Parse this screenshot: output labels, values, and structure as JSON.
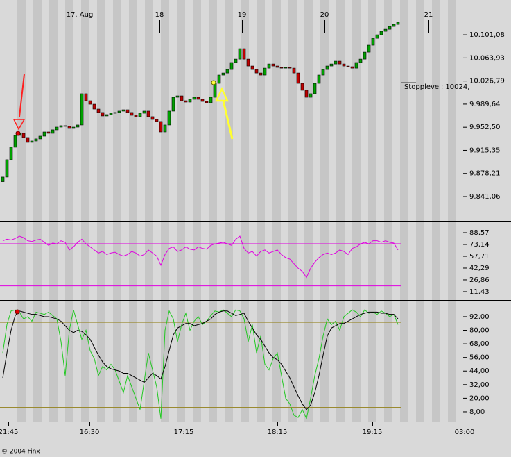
{
  "chart_data": [
    {
      "type": "candlestick",
      "date_labels": [
        "17. Aug",
        "18",
        "19",
        "20",
        "21"
      ],
      "open": [
        9865.0,
        9872.4,
        9900.3,
        9920.4,
        9939.4,
        9942.7,
        9936.0,
        9928.2,
        9930.4,
        9933.8,
        9938.2,
        9944.9,
        9942.7,
        9948.3,
        9952.7,
        9955.0,
        9953.9,
        9950.5,
        9952.7,
        9956.1,
        10006.3,
        9995.1,
        9989.5,
        9981.7,
        9976.2,
        9970.6,
        9972.8,
        9975.0,
        9976.2,
        9978.4,
        9980.6,
        9976.2,
        9971.7,
        9969.5,
        9975.0,
        9978.4,
        9969.5,
        9965.0,
        9961.7,
        9944.9,
        9956.1,
        9978.4,
        10000.7,
        10002.9,
        9995.1,
        9992.9,
        9997.4,
        10000.7,
        9997.4,
        9994.0,
        9991.8,
        10000.7,
        10023.0,
        10036.4,
        10039.7,
        10045.3,
        10056.5,
        10062.0,
        10078.8,
        10062.0,
        10050.9,
        10045.3,
        10039.7,
        10036.4,
        10047.5,
        10054.2,
        10050.9,
        10048.7,
        10047.5,
        10048.7,
        10047.5,
        10039.7,
        10023.0,
        10011.9,
        10000.7,
        10006.3,
        10023.0,
        10036.4,
        10045.3,
        10050.9,
        10054.2,
        10058.7,
        10054.2,
        10050.9,
        10049.8,
        10047.5,
        10056.5,
        10062.0,
        10073.2,
        10084.4,
        10095.5,
        10101.1,
        10106.7,
        10110.0,
        10114.5,
        10117.8
      ],
      "close": [
        9872.4,
        9900.3,
        9920.4,
        9939.4,
        9942.7,
        9936.0,
        9928.2,
        9930.4,
        9933.8,
        9938.2,
        9944.9,
        9942.7,
        9948.3,
        9952.7,
        9955.0,
        9953.9,
        9950.5,
        9952.7,
        9956.1,
        10006.3,
        9995.1,
        9989.5,
        9981.7,
        9976.2,
        9970.6,
        9972.8,
        9975.0,
        9976.2,
        9978.4,
        9980.6,
        9976.2,
        9971.7,
        9969.5,
        9975.0,
        9978.4,
        9969.5,
        9965.0,
        9961.7,
        9944.9,
        9956.1,
        9978.4,
        10000.7,
        10002.9,
        9995.1,
        9992.9,
        9997.4,
        10000.7,
        9997.4,
        9994.0,
        9991.8,
        10000.7,
        10023.0,
        10036.4,
        10039.7,
        10045.3,
        10056.5,
        10062.0,
        10078.8,
        10062.0,
        10050.9,
        10045.3,
        10039.7,
        10036.4,
        10047.5,
        10054.2,
        10050.9,
        10048.7,
        10047.5,
        10048.7,
        10047.5,
        10039.7,
        10023.0,
        10011.9,
        10000.7,
        10006.3,
        10023.0,
        10036.4,
        10045.3,
        10050.9,
        10054.2,
        10058.7,
        10054.2,
        10050.9,
        10049.8,
        10047.5,
        10056.5,
        10062.0,
        10073.2,
        10084.4,
        10095.5,
        10101.1,
        10106.7,
        10110.0,
        10114.5,
        10117.8,
        10121.2
      ],
      "up_color": "#00a000",
      "down_color": "#c00000",
      "ylim": [
        9802,
        10157
      ],
      "yticks": [
        {
          "value": 9841.06,
          "label": "9.841,06"
        },
        {
          "value": 9878.21,
          "label": "9.878,21"
        },
        {
          "value": 9915.35,
          "label": "9.915,35"
        },
        {
          "value": 9952.5,
          "label": "9.952,50"
        },
        {
          "value": 9989.64,
          "label": "9.989,64"
        },
        {
          "value": 10026.79,
          "label": "10.026,79"
        },
        {
          "value": 10063.93,
          "label": "10.063,93"
        },
        {
          "value": 10101.08,
          "label": "10.101,08"
        }
      ],
      "annotation": {
        "label": "Stopplevel: 10024,",
        "value": 10024
      }
    },
    {
      "type": "line",
      "series": [
        {
          "color": "#e000e0",
          "values": [
            78,
            80,
            79,
            81,
            84,
            82,
            78,
            77,
            79,
            80,
            76,
            72,
            75,
            74,
            78,
            76,
            66,
            70,
            76,
            80,
            74,
            70,
            66,
            62,
            64,
            60,
            62,
            63,
            60,
            58,
            60,
            64,
            62,
            58,
            60,
            66,
            62,
            58,
            46,
            60,
            68,
            70,
            64,
            66,
            70,
            67,
            66,
            70,
            68,
            67,
            72,
            74,
            75,
            76,
            74,
            72,
            80,
            84,
            68,
            62,
            64,
            58,
            64,
            66,
            62,
            64,
            66,
            60,
            56,
            54,
            48,
            42,
            38,
            30,
            42,
            50,
            56,
            60,
            62,
            60,
            62,
            66,
            64,
            60,
            68,
            70,
            74,
            76,
            74,
            78,
            78,
            76,
            78,
            76,
            75,
            66
          ]
        }
      ],
      "levels": [
        74,
        19
      ],
      "level_color": "#e000e0",
      "ylim": [
        0.5,
        102.2
      ],
      "yticks": [
        {
          "value": 11.43,
          "label": "11,43"
        },
        {
          "value": 26.86,
          "label": "26,86"
        },
        {
          "value": 42.29,
          "label": "42,29"
        },
        {
          "value": 57.71,
          "label": "57,71"
        },
        {
          "value": 73.14,
          "label": "73,14"
        },
        {
          "value": 88.57,
          "label": "88,57"
        }
      ]
    },
    {
      "type": "line",
      "series": [
        {
          "color": "#22c822",
          "values": [
            60,
            85,
            97,
            98,
            96,
            90,
            92,
            88,
            96,
            95,
            94,
            96,
            93,
            90,
            70,
            40,
            80,
            98,
            85,
            72,
            80,
            62,
            55,
            40,
            48,
            45,
            50,
            45,
            35,
            25,
            40,
            30,
            20,
            10,
            35,
            60,
            45,
            30,
            2,
            80,
            97,
            90,
            70,
            85,
            95,
            80,
            88,
            92,
            85,
            88,
            93,
            97,
            96,
            98,
            95,
            92,
            98,
            97,
            90,
            70,
            85,
            60,
            75,
            50,
            45,
            55,
            60,
            40,
            20,
            15,
            5,
            3,
            10,
            2,
            20,
            40,
            55,
            75,
            90,
            85,
            88,
            80,
            92,
            95,
            98,
            96,
            92,
            98,
            95,
            96,
            94,
            97,
            95,
            92,
            94,
            85
          ]
        },
        {
          "color": "#000000",
          "values": [
            38,
            60,
            80,
            93,
            97,
            96,
            95,
            94,
            94,
            93,
            92,
            92,
            91,
            90,
            88,
            84,
            80,
            78,
            80,
            79,
            76,
            72,
            65,
            58,
            52,
            48,
            46,
            45,
            44,
            42,
            42,
            40,
            38,
            36,
            34,
            38,
            42,
            40,
            37,
            48,
            62,
            76,
            82,
            84,
            86,
            86,
            84,
            85,
            86,
            88,
            90,
            94,
            96,
            97,
            97,
            95,
            93,
            94,
            95,
            88,
            82,
            76,
            72,
            66,
            60,
            56,
            54,
            50,
            44,
            38,
            30,
            22,
            15,
            10,
            14,
            25,
            40,
            58,
            75,
            82,
            84,
            86,
            86,
            88,
            90,
            92,
            94,
            95,
            96,
            96,
            96,
            95,
            95,
            94,
            94,
            90
          ]
        }
      ],
      "levels": [
        87,
        12
      ],
      "level_color": "#9a8a30",
      "ylim": [
        -0.6,
        103
      ],
      "yticks": [
        {
          "value": 8,
          "label": "8,00"
        },
        {
          "value": 20,
          "label": "20,00"
        },
        {
          "value": 32,
          "label": "32,00"
        },
        {
          "value": 44,
          "label": "44,00"
        },
        {
          "value": 56,
          "label": "56,00"
        },
        {
          "value": 68,
          "label": "68,00"
        },
        {
          "value": 80,
          "label": "80,00"
        },
        {
          "value": 92,
          "label": "92,00"
        }
      ],
      "x_labels": [
        "21:45",
        "16:30",
        "17:15",
        "18:15",
        "19:15",
        "03:00"
      ]
    }
  ],
  "footer": "© 2004 Finx"
}
